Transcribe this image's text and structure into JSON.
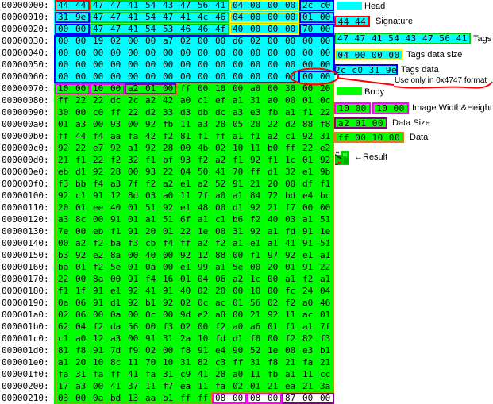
{
  "colors": {
    "head": "#00ffff",
    "body": "#00ff00",
    "white": "#ffffff",
    "red": "#ff0000",
    "tag": "#00cc00",
    "size": "#ffff00",
    "tdata": "#0000ff",
    "wh": "#ff00ff",
    "dsize": "#800080",
    "dataRegion": "#e87820",
    "annotation": "#ff0000"
  },
  "hex": {
    "offsets": [
      "00000000:",
      "00000010:",
      "00000020:",
      "00000030:",
      "00000040:",
      "00000050:",
      "00000060:",
      "00000070:",
      "00000080:",
      "00000090:",
      "000000a0:",
      "000000b0:",
      "000000c0:",
      "000000d0:",
      "000000e0:",
      "000000f0:",
      "00000100:",
      "00000110:",
      "00000120:",
      "00000130:",
      "00000140:",
      "00000150:",
      "00000160:",
      "00000170:",
      "00000180:",
      "00000190:",
      "000001a0:",
      "000001b0:",
      "000001c0:",
      "000001d0:",
      "000001e0:",
      "000001f0:",
      "00000200:",
      "00000210:"
    ],
    "rows": [
      "44 44 47 47 41 54 43 47 56 41 04 00 00 00 2c c0",
      "31 9e 47 47 41 54 47 41 4c 46 04 00 00 00 01 00",
      "00 00 47 47 41 54 53 46 46 4f 40 00 00 00 70 00",
      "00 00 19 02 00 00 a7 02 00 00 d6 02 00 00 00 00",
      "00 00 00 00 00 00 00 00 00 00 00 00 00 00 00 00",
      "00 00 00 00 00 00 00 00 00 00 00 00 00 00 00 00",
      "00 00 00 00 00 00 00 00 00 00 00 00 00 00 00 00",
      "10 00 10 00 a2 01 00 ff 00 10 00 a0 00 30 00 20",
      "ff 22 22 dc 2c a2 42 a0 c1 ef a1 31 a0 00 01 0c",
      "30 00 c0 ff 22 d2 33 d3 db dc a3 e3 fb a1 f1 22",
      "01 a3 00 93 00 92 fb 11 a3 28 05 20 22 d2 88 f8",
      "ff 44 f4 aa fa 42 f2 81 f1 ff a1 f1 a2 c1 92 31",
      "92 22 e7 92 a1 92 28 00 4b 02 10 11 b0 ff 22 e2",
      "21 f1 22 f2 32 f1 bf 93 f2 a2 f1 92 f1 1c 01 92",
      "eb d1 92 28 00 93 22 04 50 41 70 ff d1 32 e1 9b",
      "f3 bb f4 a3 7f f2 a2 e1 a2 52 91 21 20 00 df f1",
      "92 c1 91 12 8d 03 a0 11 7f a0 a1 84 72 bd e4 bc",
      "20 01 ee 40 01 51 92 e1 48 00 d1 92 21 f7 00 00",
      "a3 8c 00 91 01 a1 51 6f a1 c1 b6 f2 40 03 a1 51",
      "7e 00 eb f1 91 20 01 22 1e 00 31 92 a1 fd 91 1e",
      "00 a2 f2 ba f3 cb f4 ff a2 f2 a1 e1 a1 41 91 51",
      "b3 92 e2 8a 00 40 00 92 12 88 00 f1 97 92 e1 a1",
      "ba 01 f2 5e 01 0a 00 e1 99 a1 5e 00 20 01 91 22",
      "22 00 8a 00 91 f4 16 01 04 06 a2 1c 00 a1 f2 a1",
      "f1 1f 91 e1 92 41 91 40 02 20 00 10 00 fc 24 04",
      "0a 06 91 d1 92 b1 92 02 0c ac 01 56 02 f2 a0 46",
      "02 06 00 0a 00 0c 00 9d e2 a8 00 21 92 11 ac 01",
      "62 04 f2 da 56 00 f3 02 00 f2 a0 a6 01 f1 a1 7f",
      "c1 a0 12 a3 00 91 31 2a 10 fd d1 f0 00 f2 82 f3",
      "81 f8 91 7d f9 02 00 f8 91 e4 90 52 1e 00 e3 b1",
      "a1 20 10 8c 11 70 10 31 82 c3 ff 31 f8 21 fa 21",
      "fa 31 fa ff 41 fa 31 c9 41 28 a0 11 fb a1 11 cc",
      "17 a3 00 41 37 11 f7 ea 11 fa 02 01 21 ea 21 3a",
      "03 00 0a bd 13 aa b1 ff ff 08 00 08 00 87 00 00"
    ],
    "boxes": [
      {
        "row": 0,
        "start": 0,
        "end": 1,
        "border": "red",
        "fill": "none"
      },
      {
        "row": 0,
        "start": 2,
        "end": 9,
        "border": "tag",
        "fill": "none"
      },
      {
        "row": 0,
        "start": 10,
        "end": 13,
        "border": "size",
        "fill": "none"
      },
      {
        "row": 0,
        "start": 14,
        "end": 15,
        "border": "tdata",
        "fill": "none"
      },
      {
        "row": 1,
        "start": 0,
        "end": 1,
        "border": "tdata",
        "fill": "none"
      },
      {
        "row": 1,
        "start": 2,
        "end": 9,
        "border": "tag",
        "fill": "none"
      },
      {
        "row": 1,
        "start": 10,
        "end": 13,
        "border": "size",
        "fill": "none"
      },
      {
        "row": 1,
        "start": 14,
        "end": 15,
        "border": "tdata",
        "fill": "none"
      },
      {
        "row": 2,
        "start": 0,
        "end": 1,
        "border": "tdata",
        "fill": "none"
      },
      {
        "row": 2,
        "start": 2,
        "end": 9,
        "border": "tag",
        "fill": "none"
      },
      {
        "row": 2,
        "start": 10,
        "end": 13,
        "border": "size",
        "fill": "none"
      },
      {
        "row": 2,
        "start": 14,
        "end": 15,
        "border": "tdata",
        "fill": "none"
      },
      {
        "row": 7,
        "start": 0,
        "end": 1,
        "border": "wh",
        "fill": "none"
      },
      {
        "row": 7,
        "start": 2,
        "end": 3,
        "border": "wh",
        "fill": "none"
      },
      {
        "row": 7,
        "start": 4,
        "end": 6,
        "border": "dsize",
        "fill": "none"
      },
      {
        "row": 33,
        "start": 9,
        "end": 10,
        "border": "wh",
        "fill": "white"
      },
      {
        "row": 33,
        "start": 11,
        "end": 12,
        "border": "wh",
        "fill": "white"
      },
      {
        "row": 33,
        "start": 13,
        "end": 15,
        "border": "dsize",
        "fill": "white"
      }
    ]
  },
  "legend": {
    "head_label": "Head",
    "signature_bytes": "44 44",
    "signature_label": "Signature",
    "tags_bytes": "47 47 41 54 43 47 56 41",
    "tags_label": "Tags",
    "tags_size_bytes": "04 00 00 00",
    "tags_size_label": "Tags data size",
    "tags_data_bytes": "2c c0 31 9e",
    "tags_data_label": "Tags data",
    "annotation": "Use only in 0x4747 format",
    "body_label": "Body",
    "wh_bytes_1": "10 00",
    "wh_bytes_2": "10 00",
    "wh_label": "Image Width&Height",
    "data_size_bytes": "a2 01 00",
    "data_size_label": "Data Size",
    "data_bytes": "ff 00 10 00",
    "data_label": "Data",
    "result_arrow": "←",
    "result_label": "Result"
  }
}
